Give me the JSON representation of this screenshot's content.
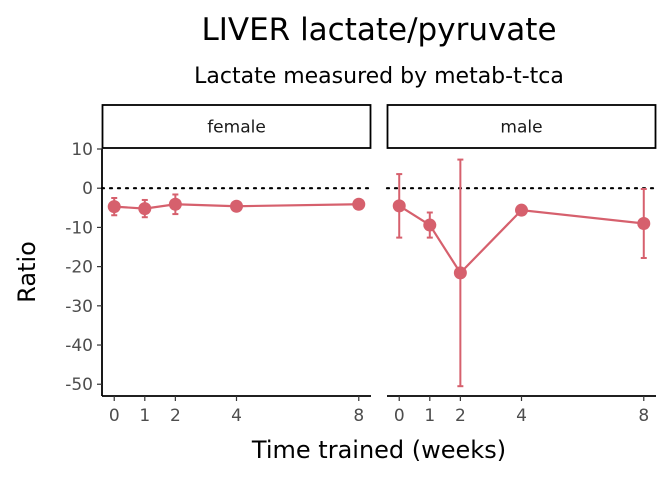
{
  "chart_data": {
    "type": "line",
    "title": "LIVER lactate/pyruvate",
    "subtitle": "Lactate measured by metab-t-tca",
    "xlabel": "Time trained (weeks)",
    "ylabel": "Ratio",
    "ylim": [
      -53,
      10
    ],
    "xlim": [
      -0.4,
      8.4
    ],
    "yticks": [
      10,
      0,
      -10,
      -20,
      -30,
      -40,
      -50
    ],
    "xticks": [
      0,
      1,
      2,
      4,
      8
    ],
    "reference_line": 0,
    "color": "#d6606d",
    "grid": false,
    "panels": [
      {
        "label": "female",
        "x": [
          0,
          1,
          2,
          4,
          8
        ],
        "y": [
          -4.7,
          -5.2,
          -4.1,
          -4.6,
          -4.1
        ],
        "ymin": [
          -6.9,
          -7.4,
          -6.6,
          -5.6,
          -5.0
        ],
        "ymax": [
          -2.5,
          -3.0,
          -1.6,
          -3.6,
          -3.2
        ]
      },
      {
        "label": "male",
        "x": [
          0,
          1,
          2,
          4,
          8
        ],
        "y": [
          -4.5,
          -9.4,
          -21.6,
          -5.6,
          -9.0
        ],
        "ymin": [
          -12.6,
          -12.6,
          -50.5,
          -6.5,
          -17.8
        ],
        "ymax": [
          3.6,
          -6.2,
          7.3,
          -4.7,
          -0.2
        ]
      }
    ]
  }
}
